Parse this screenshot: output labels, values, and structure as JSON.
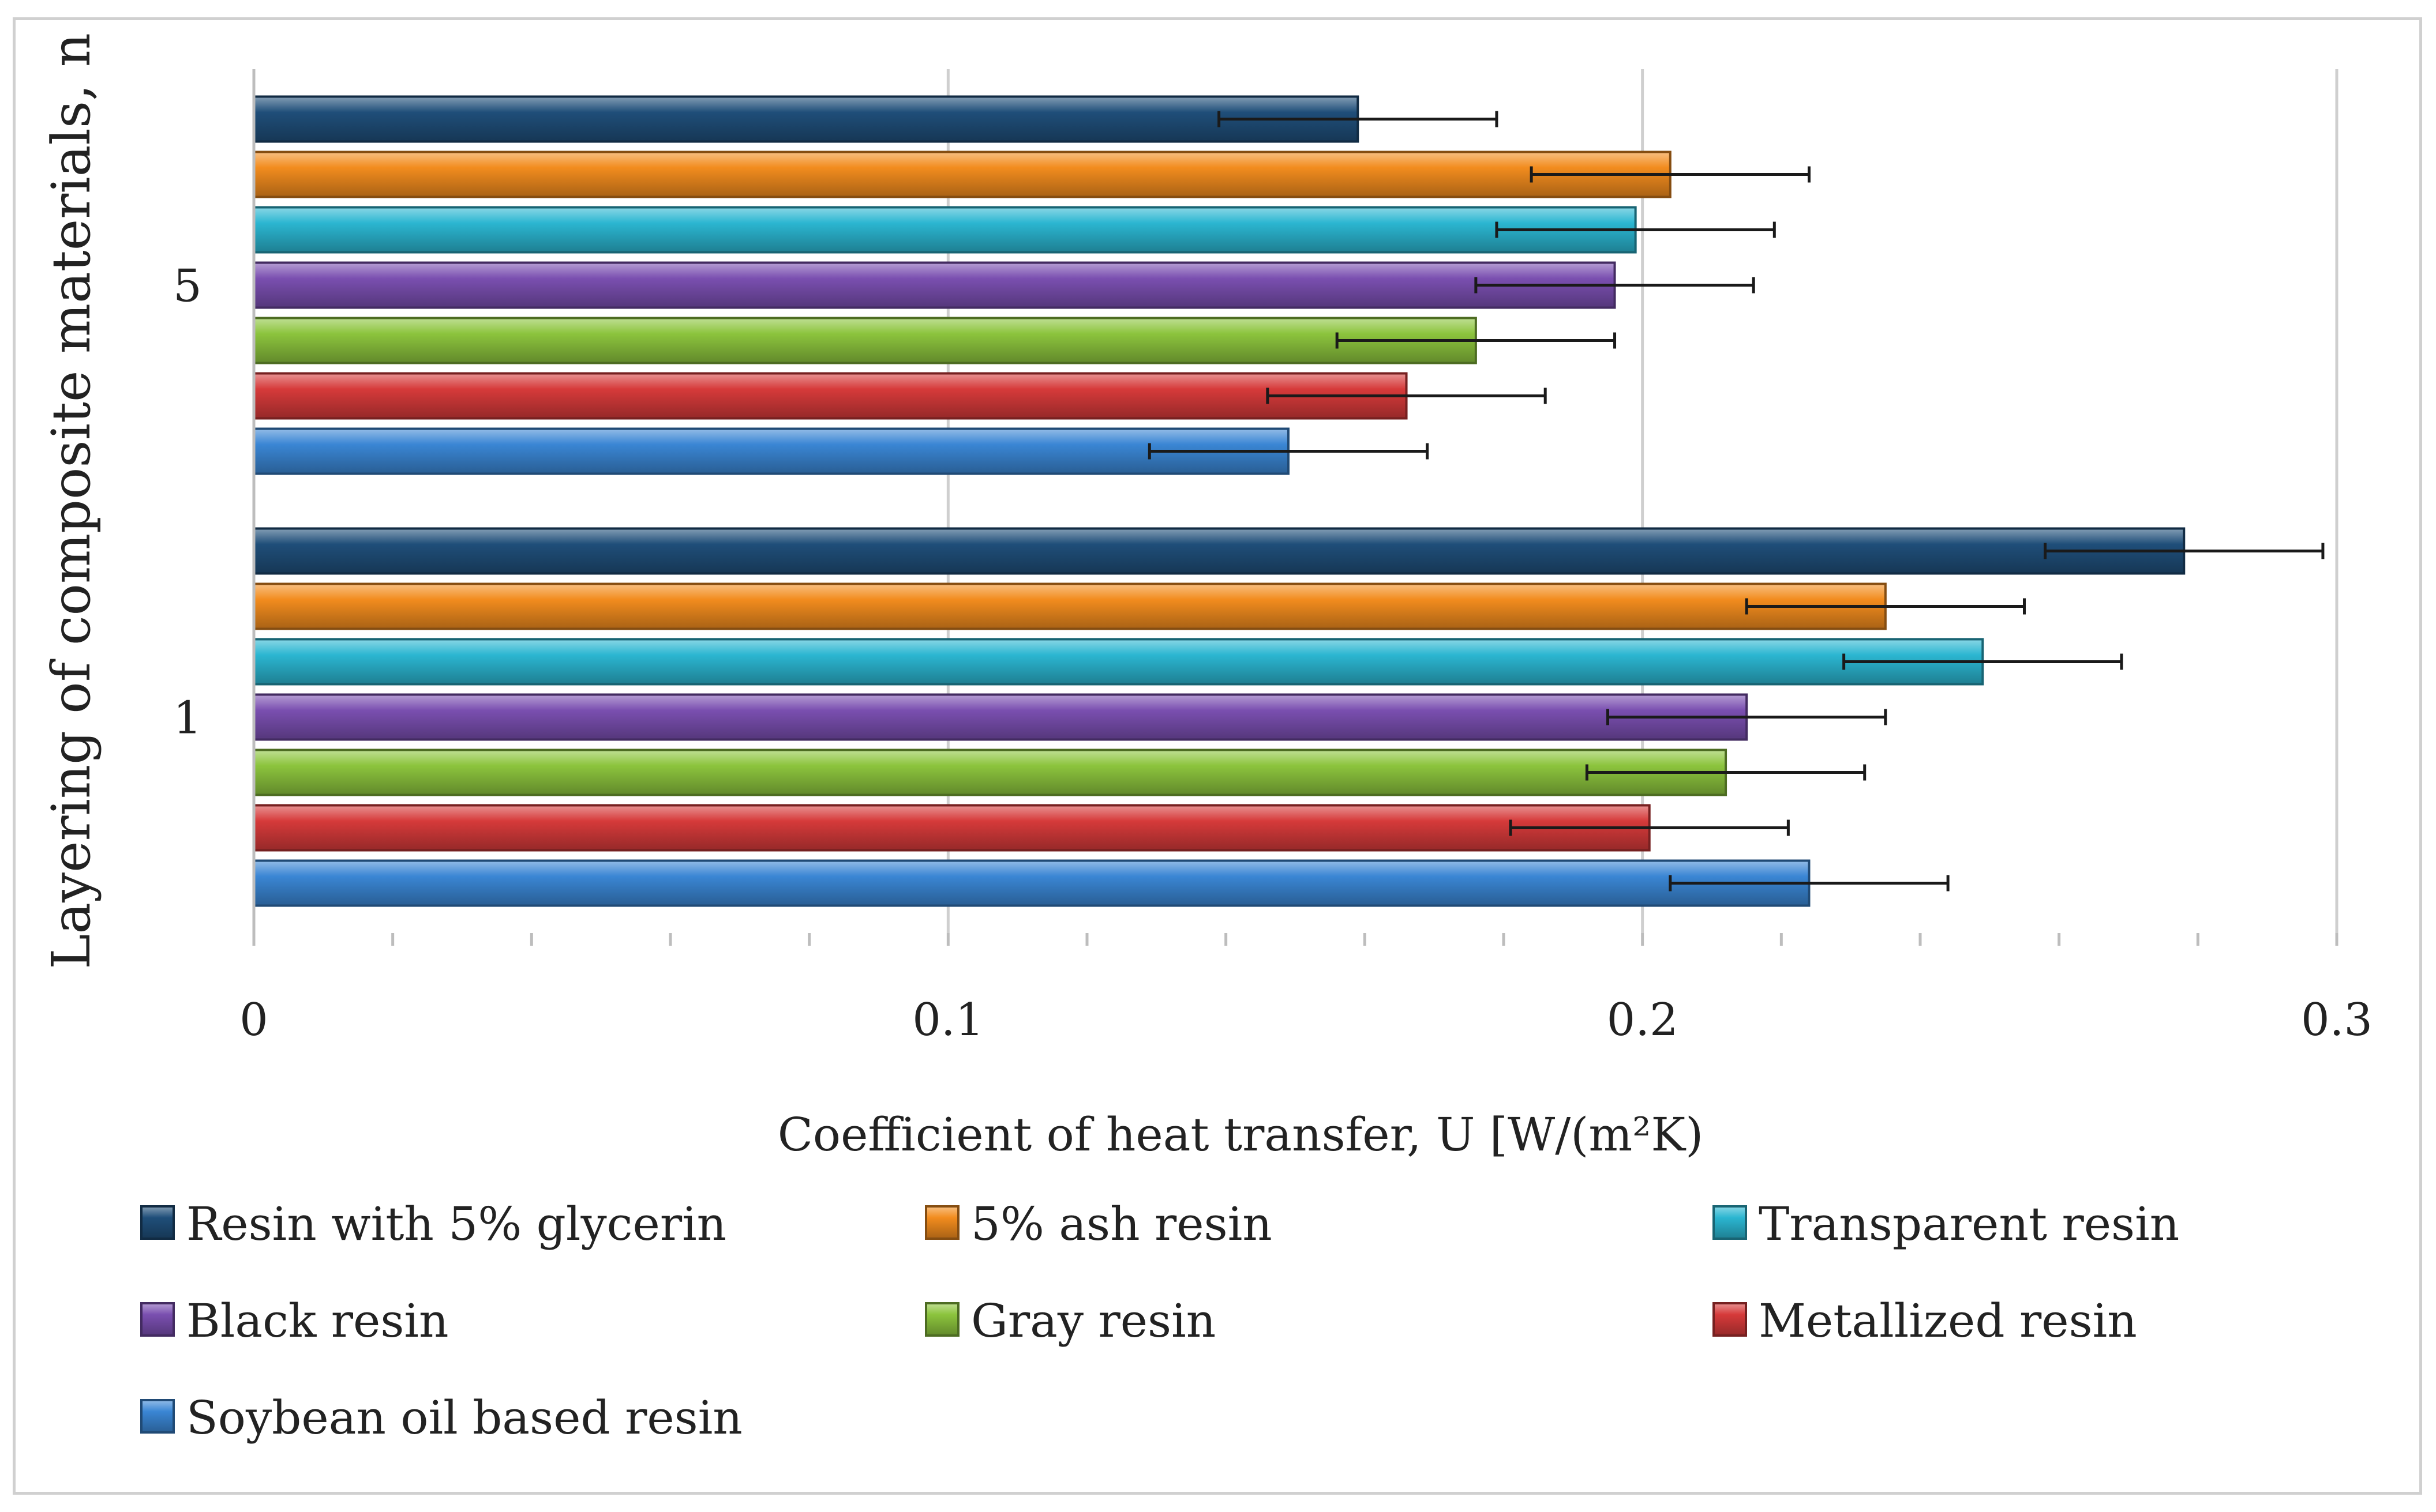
{
  "chart_data": {
    "type": "bar",
    "orientation": "horizontal",
    "title": "",
    "xlabel": "Coefficient of heat transfer, U [W/(m²K)",
    "ylabel": "Layering of composite materials, n",
    "xlim": [
      0,
      0.3
    ],
    "xticks": [
      "0",
      "0.1",
      "0.2",
      "0.3"
    ],
    "categories": [
      "5",
      "1"
    ],
    "grid": true,
    "legend_position": "bottom",
    "series": [
      {
        "name": "Resin with 5% glycerin",
        "color": "#1f4e79",
        "values": [
          0.159,
          0.278
        ],
        "errors": [
          0.02,
          0.02
        ]
      },
      {
        "name": "5% ash resin",
        "color": "#f28c1e",
        "values": [
          0.204,
          0.235
        ],
        "errors": [
          0.02,
          0.02
        ]
      },
      {
        "name": "Transparent resin",
        "color": "#2bb6d1",
        "values": [
          0.199,
          0.249
        ],
        "errors": [
          0.02,
          0.02
        ]
      },
      {
        "name": "Black resin",
        "color": "#7a4fb0",
        "values": [
          0.196,
          0.215
        ],
        "errors": [
          0.02,
          0.02
        ]
      },
      {
        "name": "Gray resin",
        "color": "#8cc43d",
        "values": [
          0.176,
          0.212
        ],
        "errors": [
          0.02,
          0.02
        ]
      },
      {
        "name": "Metallized resin",
        "color": "#d63a3a",
        "values": [
          0.166,
          0.201
        ],
        "errors": [
          0.02,
          0.02
        ]
      },
      {
        "name": "Soybean oil based resin",
        "color": "#3a86d4",
        "values": [
          0.149,
          0.224
        ],
        "errors": [
          0.02,
          0.02
        ]
      }
    ]
  }
}
